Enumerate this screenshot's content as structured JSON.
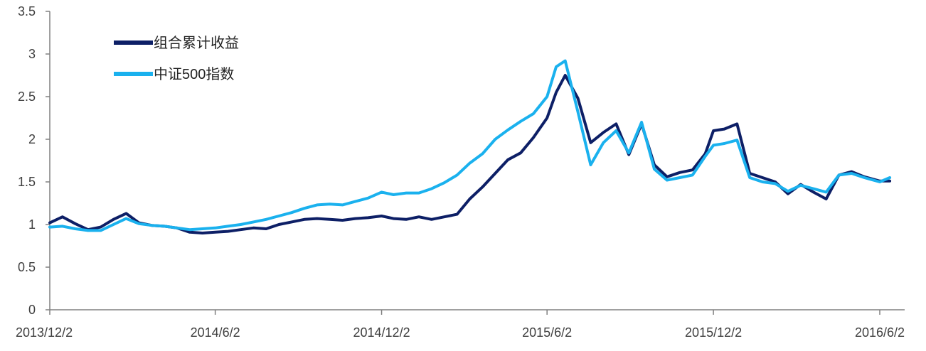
{
  "colors": {
    "portfolio": "#0d1f66",
    "index": "#1ab1ee",
    "axis": "#808080",
    "text": "#404040"
  },
  "chart_data": {
    "type": "line",
    "title": "",
    "xlabel": "",
    "ylabel": "",
    "ylim": [
      0,
      3.5
    ],
    "yticks": [
      "0",
      "0.5",
      "1",
      "1.5",
      "2",
      "2.5",
      "3",
      "3.5"
    ],
    "x_ticks": [
      "2013/12/2",
      "2014/6/2",
      "2014/12/2",
      "2015/6/2",
      "2015/12/2",
      "2016/6/2"
    ],
    "grid": false,
    "legend_position": "top-left",
    "x": [
      "2013/12/2",
      "2013/12/16",
      "2013/12/30",
      "2014/1/13",
      "2014/1/27",
      "2014/2/10",
      "2014/2/24",
      "2014/3/10",
      "2014/3/24",
      "2014/4/7",
      "2014/4/21",
      "2014/5/5",
      "2014/5/19",
      "2014/6/2",
      "2014/6/16",
      "2014/6/30",
      "2014/7/14",
      "2014/7/28",
      "2014/8/11",
      "2014/8/25",
      "2014/9/8",
      "2014/9/22",
      "2014/10/6",
      "2014/10/20",
      "2014/11/3",
      "2014/11/17",
      "2014/12/2",
      "2014/12/15",
      "2014/12/29",
      "2015/1/12",
      "2015/1/26",
      "2015/2/9",
      "2015/2/23",
      "2015/3/9",
      "2015/3/23",
      "2015/4/6",
      "2015/4/20",
      "2015/5/4",
      "2015/5/18",
      "2015/6/2",
      "2015/6/12",
      "2015/6/22",
      "2015/7/6",
      "2015/7/20",
      "2015/8/3",
      "2015/8/17",
      "2015/8/31",
      "2015/9/14",
      "2015/9/28",
      "2015/10/12",
      "2015/10/26",
      "2015/11/9",
      "2015/11/23",
      "2015/12/2",
      "2015/12/14",
      "2015/12/28",
      "2016/1/11",
      "2016/1/25",
      "2016/2/8",
      "2016/2/22",
      "2016/3/7",
      "2016/3/21",
      "2016/4/4",
      "2016/4/18",
      "2016/5/2",
      "2016/5/16",
      "2016/6/2",
      "2016/6/13"
    ],
    "series": [
      {
        "name": "组合累计收益",
        "color": "#0d1f66",
        "values": [
          1.02,
          1.09,
          1.01,
          0.94,
          0.97,
          1.06,
          1.13,
          1.02,
          0.99,
          0.98,
          0.96,
          0.91,
          0.9,
          0.91,
          0.92,
          0.94,
          0.96,
          0.95,
          1.0,
          1.03,
          1.06,
          1.07,
          1.06,
          1.05,
          1.07,
          1.08,
          1.1,
          1.07,
          1.06,
          1.09,
          1.06,
          1.09,
          1.12,
          1.3,
          1.44,
          1.6,
          1.76,
          1.84,
          2.02,
          2.25,
          2.55,
          2.75,
          2.48,
          1.96,
          2.08,
          2.18,
          1.82,
          2.18,
          1.7,
          1.56,
          1.61,
          1.64,
          1.83,
          2.1,
          2.12,
          2.18,
          1.6,
          1.55,
          1.5,
          1.36,
          1.47,
          1.38,
          1.3,
          1.58,
          1.62,
          1.56,
          1.51,
          1.51
        ]
      },
      {
        "name": "中证500指数",
        "color": "#1ab1ee",
        "values": [
          0.97,
          0.98,
          0.95,
          0.93,
          0.93,
          1.0,
          1.07,
          1.01,
          0.99,
          0.98,
          0.96,
          0.94,
          0.95,
          0.96,
          0.98,
          1.0,
          1.03,
          1.06,
          1.1,
          1.14,
          1.19,
          1.23,
          1.24,
          1.23,
          1.27,
          1.31,
          1.38,
          1.35,
          1.37,
          1.37,
          1.42,
          1.49,
          1.58,
          1.72,
          1.83,
          2.0,
          2.11,
          2.21,
          2.3,
          2.5,
          2.85,
          2.92,
          2.32,
          1.7,
          1.96,
          2.1,
          1.84,
          2.2,
          1.65,
          1.52,
          1.55,
          1.58,
          1.8,
          1.93,
          1.95,
          1.99,
          1.55,
          1.5,
          1.48,
          1.39,
          1.46,
          1.42,
          1.38,
          1.58,
          1.6,
          1.55,
          1.5,
          1.55
        ]
      }
    ]
  }
}
